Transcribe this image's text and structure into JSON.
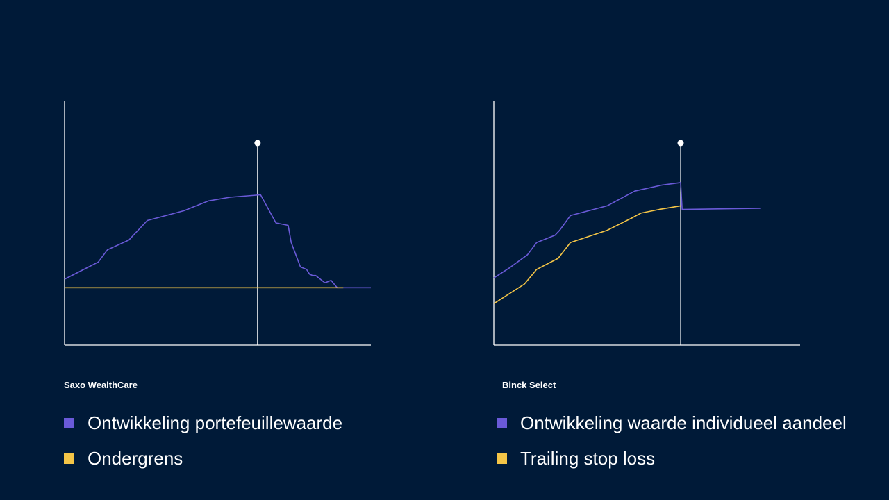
{
  "colors": {
    "background": "#001a38",
    "axis": "#ffffff",
    "purple": "#6a5ad8",
    "yellow": "#f4c547"
  },
  "chart_data": [
    {
      "type": "line",
      "title": "Saxo WealthCare",
      "xlim": [
        0,
        100
      ],
      "ylim": [
        0,
        100
      ],
      "marker_x": 63,
      "legend_position": "bottom",
      "series": [
        {
          "name": "Ontwikkeling portefeuillewaarde",
          "color": "#6a5ad8",
          "points": [
            [
              0,
              27
            ],
            [
              11,
              34
            ],
            [
              14,
              39
            ],
            [
              21,
              43
            ],
            [
              27,
              51
            ],
            [
              39,
              55
            ],
            [
              47,
              59
            ],
            [
              54,
              60.5
            ],
            [
              64,
              61.5
            ],
            [
              69,
              50
            ],
            [
              73,
              49
            ],
            [
              74,
              42
            ],
            [
              77,
              32
            ],
            [
              79,
              31
            ],
            [
              80,
              29
            ],
            [
              81,
              28.5
            ],
            [
              82,
              28.5
            ],
            [
              84,
              26.5
            ],
            [
              85,
              25.5
            ],
            [
              87,
              26.5
            ],
            [
              89,
              23.5
            ],
            [
              91,
              23.5
            ],
            [
              100,
              23.5
            ]
          ]
        },
        {
          "name": "Ondergrens",
          "color": "#f4c547",
          "points": [
            [
              0,
              23.5
            ],
            [
              91,
              23.5
            ]
          ]
        }
      ]
    },
    {
      "type": "line",
      "title": "Binck Select",
      "xlim": [
        0,
        100
      ],
      "ylim": [
        0,
        100
      ],
      "marker_x": 61,
      "legend_position": "bottom",
      "series": [
        {
          "name": "Ontwikkeling waarde individueel aandeel",
          "color": "#6a5ad8",
          "points": [
            [
              0,
              27.5
            ],
            [
              5,
              31.5
            ],
            [
              11,
              37
            ],
            [
              14,
              42
            ],
            [
              20,
              45
            ],
            [
              21.5,
              47
            ],
            [
              25,
              53
            ],
            [
              37,
              57
            ],
            [
              46,
              63
            ],
            [
              55,
              65.5
            ],
            [
              61,
              66.5
            ],
            [
              61.5,
              55.5
            ],
            [
              87,
              56
            ]
          ]
        },
        {
          "name": "Trailing stop loss",
          "color": "#f4c547",
          "points": [
            [
              0,
              17
            ],
            [
              10,
              25
            ],
            [
              14,
              31
            ],
            [
              21,
              35.5
            ],
            [
              25,
              42
            ],
            [
              37,
              47
            ],
            [
              45,
              52
            ],
            [
              48,
              54
            ],
            [
              54,
              55.5
            ],
            [
              61,
              57
            ]
          ]
        }
      ]
    }
  ]
}
